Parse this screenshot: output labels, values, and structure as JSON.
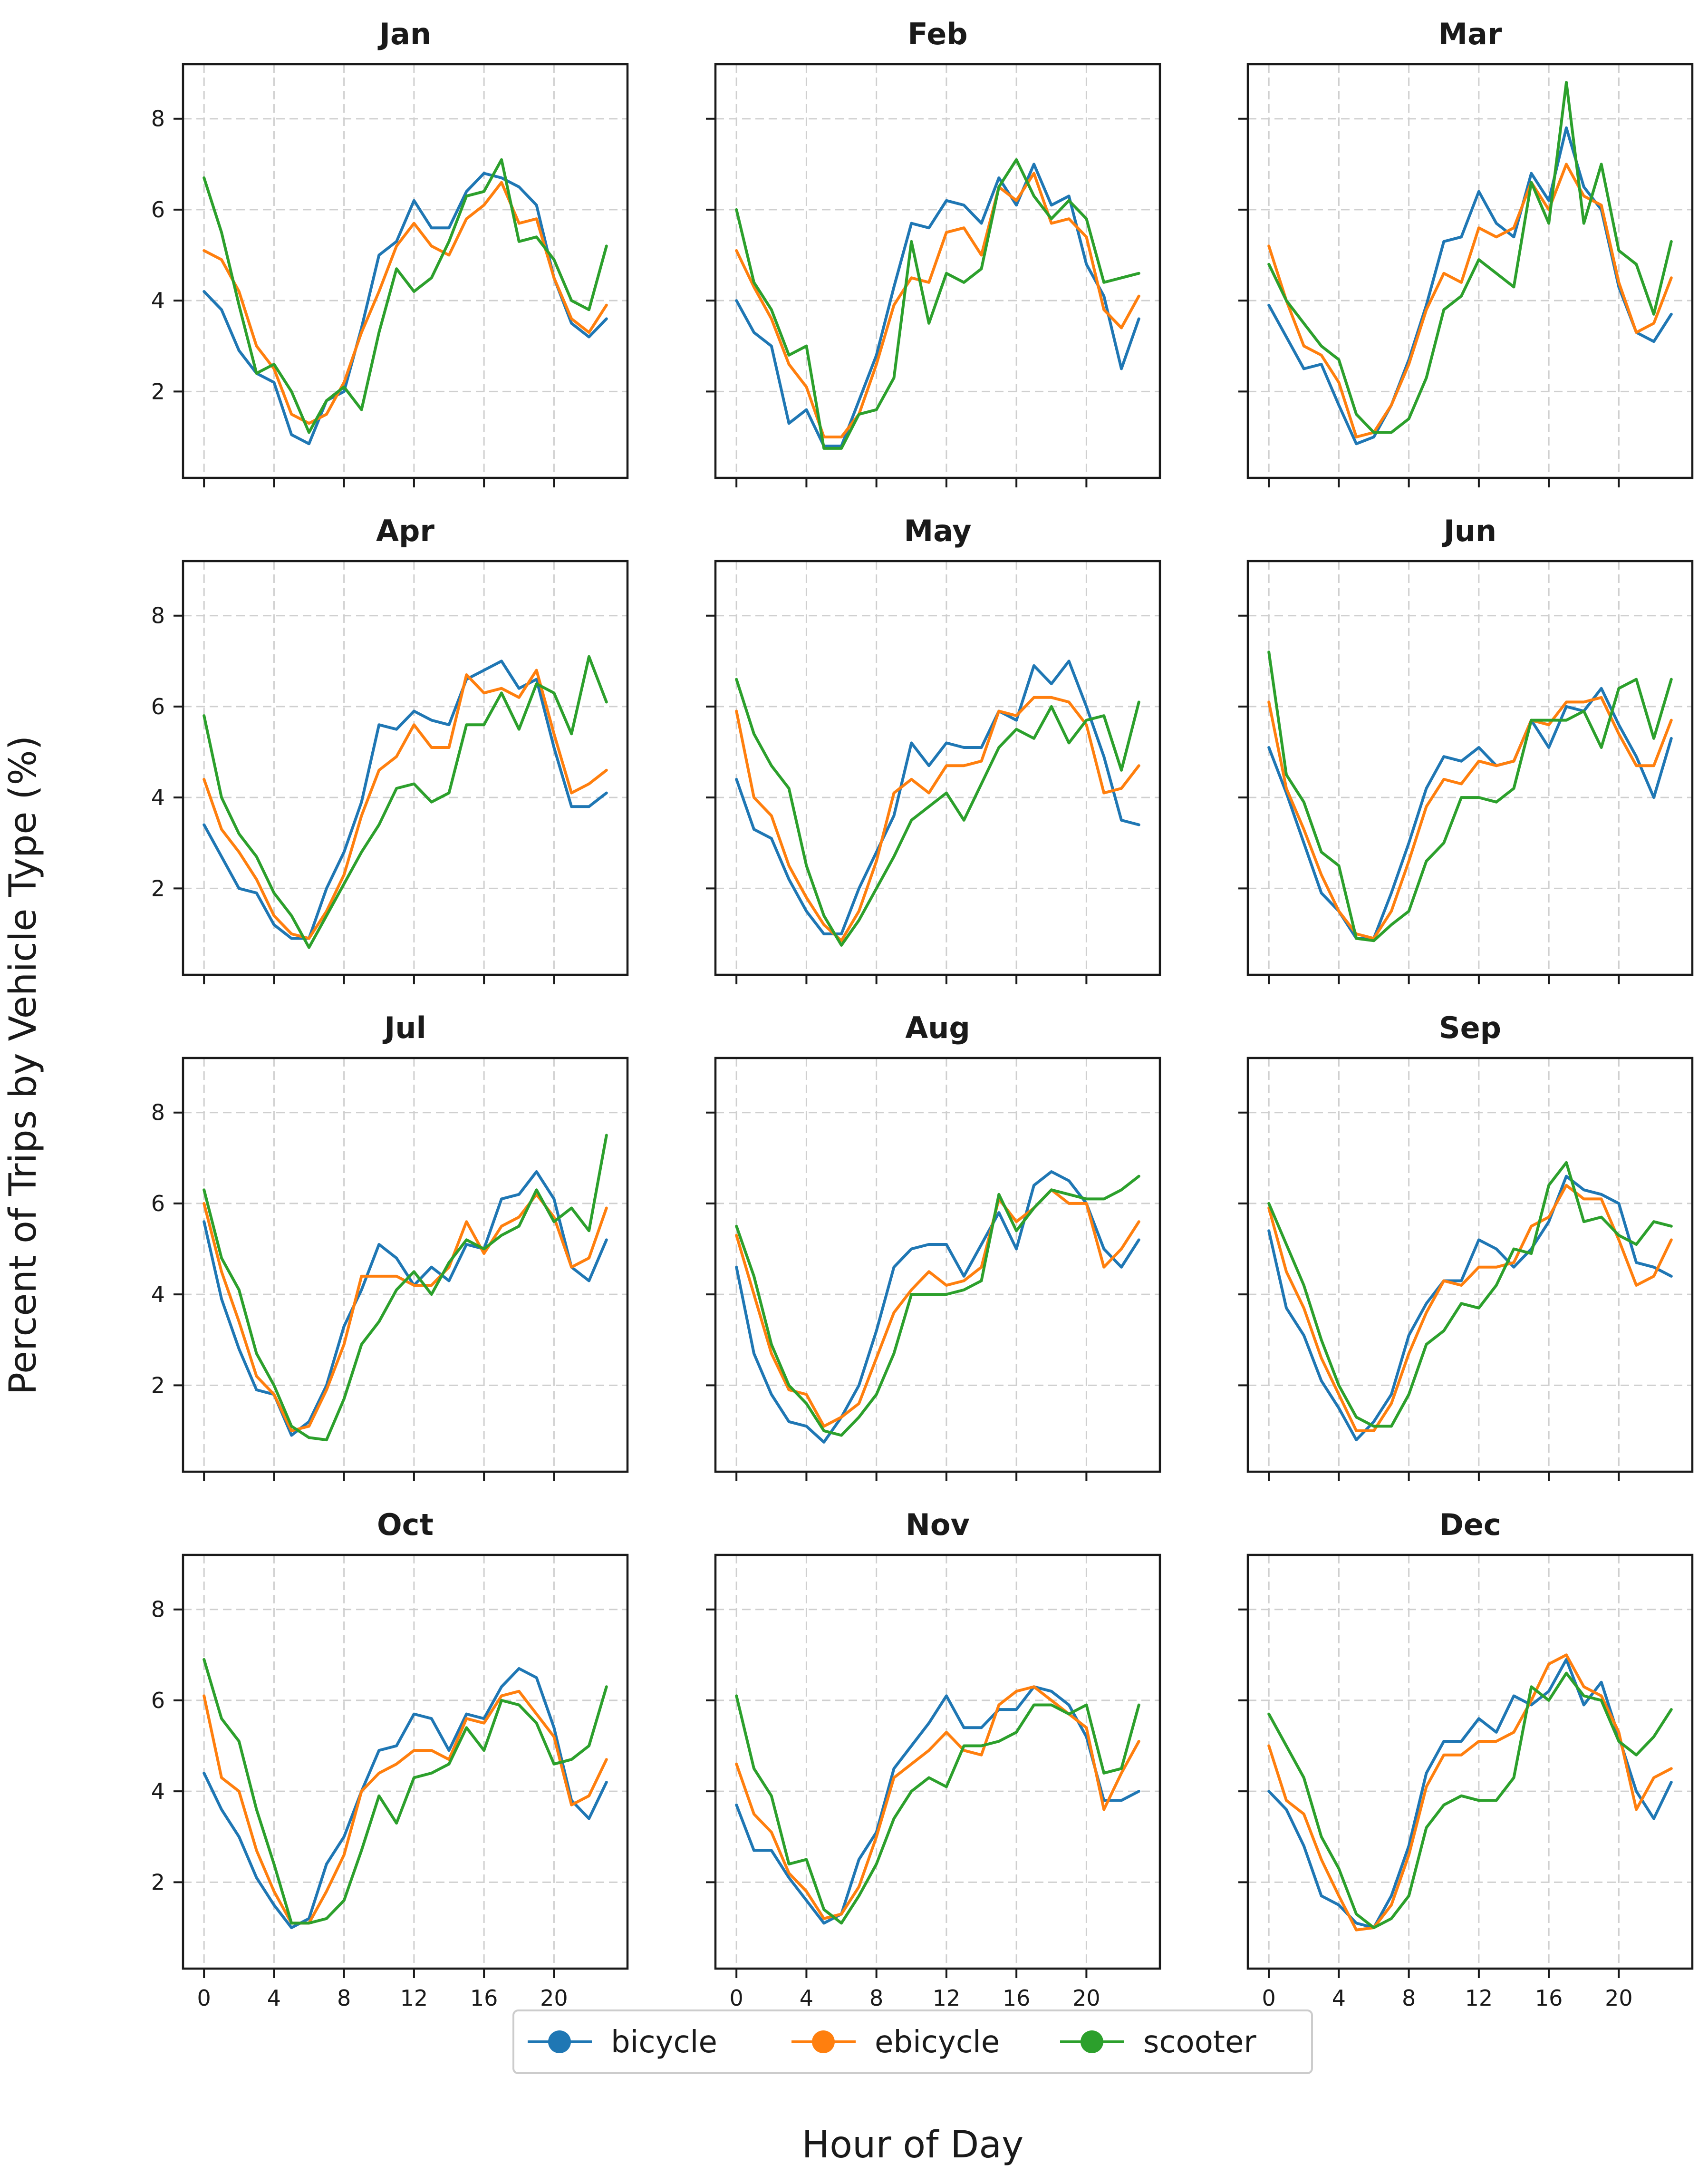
{
  "chart_data": {
    "type": "line",
    "xlabel": "Hour of Day",
    "ylabel": "Percent of Trips by Vehicle Type (%)",
    "x": [
      0,
      1,
      2,
      3,
      4,
      5,
      6,
      7,
      8,
      9,
      10,
      11,
      12,
      13,
      14,
      15,
      16,
      17,
      18,
      19,
      20,
      21,
      22,
      23
    ],
    "xticks": [
      0,
      4,
      8,
      12,
      16,
      20
    ],
    "yticks": [
      2,
      4,
      6,
      8
    ],
    "xlim": [
      -1.2,
      24.2
    ],
    "ylim": [
      0.1,
      9.2
    ],
    "grid": true,
    "legend_position": "bottom-center",
    "series_names": [
      "bicycle",
      "ebicycle",
      "scooter"
    ],
    "series_colors": {
      "bicycle": "#1f77b4",
      "ebicycle": "#ff7f0e",
      "scooter": "#2ca02c"
    },
    "panels": [
      {
        "title": "Jan",
        "series": {
          "bicycle": [
            4.2,
            3.8,
            2.9,
            2.4,
            2.2,
            1.05,
            0.85,
            1.8,
            2.0,
            3.4,
            5.0,
            5.3,
            6.2,
            5.6,
            5.6,
            6.4,
            6.8,
            6.7,
            6.5,
            6.1,
            4.5,
            3.5,
            3.2,
            3.6
          ],
          "ebicycle": [
            5.1,
            4.9,
            4.2,
            3.0,
            2.5,
            1.5,
            1.3,
            1.5,
            2.2,
            3.3,
            4.2,
            5.2,
            5.7,
            5.2,
            5.0,
            5.8,
            6.1,
            6.6,
            5.7,
            5.8,
            4.5,
            3.6,
            3.3,
            3.9
          ],
          "scooter": [
            6.7,
            5.5,
            3.9,
            2.4,
            2.6,
            2.0,
            1.1,
            1.8,
            2.1,
            1.6,
            3.3,
            4.7,
            4.2,
            4.5,
            5.3,
            6.3,
            6.4,
            7.1,
            5.3,
            5.4,
            4.9,
            4.0,
            3.8,
            5.2
          ]
        }
      },
      {
        "title": "Feb",
        "series": {
          "bicycle": [
            4.0,
            3.3,
            3.0,
            1.3,
            1.6,
            0.8,
            0.8,
            1.8,
            2.8,
            4.3,
            5.7,
            5.6,
            6.2,
            6.1,
            5.7,
            6.7,
            6.1,
            7.0,
            6.1,
            6.3,
            4.8,
            4.1,
            2.5,
            3.6
          ],
          "ebicycle": [
            5.1,
            4.3,
            3.6,
            2.6,
            2.1,
            1.0,
            1.0,
            1.5,
            2.6,
            3.9,
            4.5,
            4.4,
            5.5,
            5.6,
            5.0,
            6.5,
            6.2,
            6.8,
            5.7,
            5.8,
            5.4,
            3.8,
            3.4,
            4.1
          ],
          "scooter": [
            6.0,
            4.4,
            3.8,
            2.8,
            3.0,
            0.75,
            0.75,
            1.5,
            1.6,
            2.3,
            5.3,
            3.5,
            4.6,
            4.4,
            4.7,
            6.5,
            7.1,
            6.3,
            5.8,
            6.2,
            5.8,
            4.4,
            4.5,
            4.6
          ]
        }
      },
      {
        "title": "Mar",
        "series": {
          "bicycle": [
            3.9,
            3.2,
            2.5,
            2.6,
            1.7,
            0.85,
            1.0,
            1.7,
            2.7,
            3.9,
            5.3,
            5.4,
            6.4,
            5.7,
            5.4,
            6.8,
            6.2,
            7.8,
            6.5,
            6.0,
            4.3,
            3.3,
            3.1,
            3.7
          ],
          "ebicycle": [
            5.2,
            4.0,
            3.0,
            2.8,
            2.2,
            1.0,
            1.1,
            1.7,
            2.6,
            3.8,
            4.6,
            4.4,
            5.6,
            5.4,
            5.6,
            6.6,
            6.0,
            7.0,
            6.3,
            6.1,
            4.4,
            3.3,
            3.5,
            4.5
          ],
          "scooter": [
            4.8,
            4.0,
            3.5,
            3.0,
            2.7,
            1.5,
            1.1,
            1.1,
            1.4,
            2.3,
            3.8,
            4.1,
            4.9,
            4.6,
            4.3,
            6.6,
            5.7,
            8.8,
            5.7,
            7.0,
            5.1,
            4.8,
            3.7,
            5.3
          ]
        }
      },
      {
        "title": "Apr",
        "series": {
          "bicycle": [
            3.4,
            2.7,
            2.0,
            1.9,
            1.2,
            0.9,
            0.9,
            2.0,
            2.8,
            3.9,
            5.6,
            5.5,
            5.9,
            5.7,
            5.6,
            6.6,
            6.8,
            7.0,
            6.4,
            6.6,
            5.1,
            3.8,
            3.8,
            4.1
          ],
          "ebicycle": [
            4.4,
            3.3,
            2.8,
            2.2,
            1.4,
            1.0,
            0.9,
            1.5,
            2.3,
            3.6,
            4.6,
            4.9,
            5.6,
            5.1,
            5.1,
            6.7,
            6.3,
            6.4,
            6.2,
            6.8,
            5.4,
            4.1,
            4.3,
            4.6
          ],
          "scooter": [
            5.8,
            4.0,
            3.2,
            2.7,
            1.9,
            1.4,
            0.7,
            1.4,
            2.1,
            2.8,
            3.4,
            4.2,
            4.3,
            3.9,
            4.1,
            5.6,
            5.6,
            6.3,
            5.5,
            6.5,
            6.3,
            5.4,
            7.1,
            6.1
          ]
        }
      },
      {
        "title": "May",
        "series": {
          "bicycle": [
            4.4,
            3.3,
            3.1,
            2.2,
            1.5,
            1.0,
            1.0,
            2.0,
            2.8,
            3.6,
            5.2,
            4.7,
            5.2,
            5.1,
            5.1,
            5.9,
            5.7,
            6.9,
            6.5,
            7.0,
            6.0,
            4.9,
            3.5,
            3.4
          ],
          "ebicycle": [
            5.9,
            4.0,
            3.6,
            2.5,
            1.8,
            1.2,
            0.85,
            1.5,
            2.6,
            4.1,
            4.4,
            4.1,
            4.7,
            4.7,
            4.8,
            5.9,
            5.8,
            6.2,
            6.2,
            6.1,
            5.6,
            4.1,
            4.2,
            4.7
          ],
          "scooter": [
            6.6,
            5.4,
            4.7,
            4.2,
            2.5,
            1.4,
            0.75,
            1.3,
            2.0,
            2.7,
            3.5,
            3.8,
            4.1,
            3.5,
            4.3,
            5.1,
            5.5,
            5.3,
            6.0,
            5.2,
            5.7,
            5.8,
            4.6,
            6.1
          ]
        }
      },
      {
        "title": "Jun",
        "series": {
          "bicycle": [
            5.1,
            4.1,
            3.0,
            1.9,
            1.5,
            0.9,
            0.9,
            1.9,
            3.0,
            4.2,
            4.9,
            4.8,
            5.1,
            4.7,
            4.8,
            5.7,
            5.1,
            6.0,
            5.9,
            6.4,
            5.6,
            4.9,
            4.0,
            5.3
          ],
          "ebicycle": [
            6.1,
            4.2,
            3.3,
            2.3,
            1.5,
            1.0,
            0.9,
            1.5,
            2.6,
            3.8,
            4.4,
            4.3,
            4.8,
            4.7,
            4.8,
            5.7,
            5.6,
            6.1,
            6.1,
            6.2,
            5.4,
            4.7,
            4.7,
            5.7
          ],
          "scooter": [
            7.2,
            4.5,
            3.9,
            2.8,
            2.5,
            0.9,
            0.85,
            1.2,
            1.5,
            2.6,
            3.0,
            4.0,
            4.0,
            3.9,
            4.2,
            5.7,
            5.7,
            5.7,
            5.9,
            5.1,
            6.4,
            6.6,
            5.3,
            6.6
          ]
        }
      },
      {
        "title": "Jul",
        "series": {
          "bicycle": [
            5.6,
            3.9,
            2.8,
            1.9,
            1.8,
            0.9,
            1.2,
            2.0,
            3.3,
            4.1,
            5.1,
            4.8,
            4.2,
            4.6,
            4.3,
            5.1,
            5.0,
            6.1,
            6.2,
            6.7,
            6.1,
            4.6,
            4.3,
            5.2
          ],
          "ebicycle": [
            6.0,
            4.5,
            3.4,
            2.2,
            1.8,
            1.0,
            1.1,
            1.9,
            2.9,
            4.4,
            4.4,
            4.4,
            4.2,
            4.2,
            4.6,
            5.6,
            4.9,
            5.5,
            5.7,
            6.2,
            5.7,
            4.6,
            4.8,
            5.9
          ],
          "scooter": [
            6.3,
            4.8,
            4.1,
            2.7,
            2.0,
            1.1,
            0.85,
            0.8,
            1.7,
            2.9,
            3.4,
            4.1,
            4.5,
            4.0,
            4.7,
            5.2,
            5.0,
            5.3,
            5.5,
            6.3,
            5.6,
            5.9,
            5.4,
            7.5
          ]
        }
      },
      {
        "title": "Aug",
        "series": {
          "bicycle": [
            4.6,
            2.7,
            1.8,
            1.2,
            1.1,
            0.75,
            1.3,
            2.0,
            3.2,
            4.6,
            5.0,
            5.1,
            5.1,
            4.4,
            5.1,
            5.8,
            5.0,
            6.4,
            6.7,
            6.5,
            6.0,
            5.0,
            4.6,
            5.2
          ],
          "ebicycle": [
            5.3,
            4.0,
            2.7,
            1.9,
            1.8,
            1.1,
            1.3,
            1.6,
            2.6,
            3.6,
            4.1,
            4.5,
            4.2,
            4.3,
            4.6,
            6.1,
            5.6,
            5.9,
            6.3,
            6.0,
            6.0,
            4.6,
            5.0,
            5.6
          ],
          "scooter": [
            5.5,
            4.4,
            2.9,
            2.0,
            1.6,
            1.0,
            0.9,
            1.3,
            1.8,
            2.7,
            4.0,
            4.0,
            4.0,
            4.1,
            4.3,
            6.2,
            5.4,
            5.9,
            6.3,
            6.2,
            6.1,
            6.1,
            6.3,
            6.6
          ]
        }
      },
      {
        "title": "Sep",
        "series": {
          "bicycle": [
            5.4,
            3.7,
            3.1,
            2.1,
            1.5,
            0.8,
            1.2,
            1.8,
            3.1,
            3.8,
            4.3,
            4.3,
            5.2,
            5.0,
            4.6,
            5.0,
            5.6,
            6.6,
            6.3,
            6.2,
            6.0,
            4.7,
            4.6,
            4.4
          ],
          "ebicycle": [
            5.9,
            4.5,
            3.7,
            2.6,
            1.8,
            1.0,
            1.0,
            1.6,
            2.7,
            3.6,
            4.3,
            4.2,
            4.6,
            4.6,
            4.7,
            5.5,
            5.7,
            6.4,
            6.1,
            6.1,
            5.2,
            4.2,
            4.4,
            5.2
          ],
          "scooter": [
            6.0,
            5.1,
            4.2,
            3.0,
            2.0,
            1.3,
            1.1,
            1.1,
            1.8,
            2.9,
            3.2,
            3.8,
            3.7,
            4.2,
            5.0,
            4.9,
            6.4,
            6.9,
            5.6,
            5.7,
            5.3,
            5.1,
            5.6,
            5.5
          ]
        }
      },
      {
        "title": "Oct",
        "series": {
          "bicycle": [
            4.4,
            3.6,
            3.0,
            2.1,
            1.5,
            1.0,
            1.2,
            2.4,
            3.0,
            4.0,
            4.9,
            5.0,
            5.7,
            5.6,
            4.9,
            5.7,
            5.6,
            6.3,
            6.7,
            6.5,
            5.4,
            3.8,
            3.4,
            4.2
          ],
          "ebicycle": [
            6.1,
            4.3,
            4.0,
            2.7,
            1.8,
            1.1,
            1.1,
            1.8,
            2.6,
            4.0,
            4.4,
            4.6,
            4.9,
            4.9,
            4.7,
            5.6,
            5.5,
            6.1,
            6.2,
            5.7,
            5.2,
            3.7,
            3.9,
            4.7
          ],
          "scooter": [
            6.9,
            5.6,
            5.1,
            3.6,
            2.4,
            1.1,
            1.1,
            1.2,
            1.6,
            2.7,
            3.9,
            3.3,
            4.3,
            4.4,
            4.6,
            5.4,
            4.9,
            6.0,
            5.9,
            5.5,
            4.6,
            4.7,
            5.0,
            6.3
          ]
        }
      },
      {
        "title": "Nov",
        "series": {
          "bicycle": [
            3.7,
            2.7,
            2.7,
            2.1,
            1.6,
            1.1,
            1.3,
            2.5,
            3.1,
            4.5,
            5.0,
            5.5,
            6.1,
            5.4,
            5.4,
            5.8,
            5.8,
            6.3,
            6.2,
            5.9,
            5.2,
            3.8,
            3.8,
            4.0
          ],
          "ebicycle": [
            4.6,
            3.5,
            3.1,
            2.2,
            1.8,
            1.2,
            1.3,
            1.9,
            3.0,
            4.3,
            4.6,
            4.9,
            5.3,
            4.9,
            4.8,
            5.9,
            6.2,
            6.3,
            6.0,
            5.7,
            5.4,
            3.6,
            4.4,
            5.1
          ],
          "scooter": [
            6.1,
            4.5,
            3.9,
            2.4,
            2.5,
            1.4,
            1.1,
            1.7,
            2.4,
            3.4,
            4.0,
            4.3,
            4.1,
            5.0,
            5.0,
            5.1,
            5.3,
            5.9,
            5.9,
            5.7,
            5.9,
            4.4,
            4.5,
            5.9
          ]
        }
      },
      {
        "title": "Dec",
        "series": {
          "bicycle": [
            4.0,
            3.6,
            2.8,
            1.7,
            1.5,
            1.1,
            1.0,
            1.7,
            2.8,
            4.4,
            5.1,
            5.1,
            5.6,
            5.3,
            6.1,
            5.9,
            6.2,
            6.9,
            5.9,
            6.4,
            5.2,
            4.0,
            3.4,
            4.2
          ],
          "ebicycle": [
            5.0,
            3.8,
            3.5,
            2.5,
            1.7,
            0.95,
            1.0,
            1.5,
            2.6,
            4.1,
            4.8,
            4.8,
            5.1,
            5.1,
            5.3,
            6.0,
            6.8,
            7.0,
            6.3,
            6.1,
            5.3,
            3.6,
            4.3,
            4.5
          ],
          "scooter": [
            5.7,
            5.0,
            4.3,
            3.0,
            2.3,
            1.3,
            1.0,
            1.2,
            1.7,
            3.2,
            3.7,
            3.9,
            3.8,
            3.8,
            4.3,
            6.3,
            6.0,
            6.6,
            6.1,
            6.0,
            5.1,
            4.8,
            5.2,
            5.8
          ]
        }
      }
    ]
  }
}
